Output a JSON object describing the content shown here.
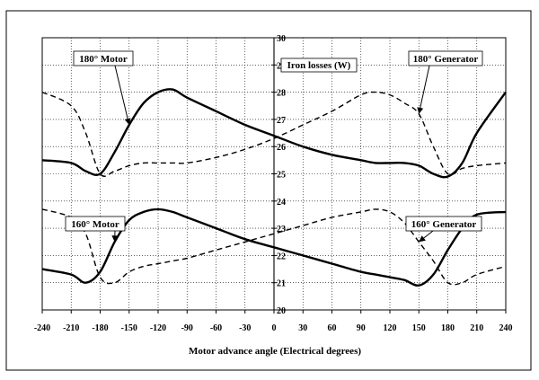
{
  "chart_data": {
    "type": "line",
    "title": "",
    "xlabel": "Motor advance angle (Electrical degrees)",
    "ylabel": "Iron losses (W)",
    "xlim": [
      -240,
      240
    ],
    "ylim": [
      20,
      30
    ],
    "xticks": [
      -240,
      -210,
      -180,
      -150,
      -120,
      -90,
      -60,
      -30,
      0,
      30,
      60,
      90,
      120,
      150,
      180,
      210,
      240
    ],
    "yticks": [
      20,
      21,
      22,
      23,
      24,
      25,
      26,
      27,
      28,
      29,
      30
    ],
    "grid": true,
    "x": [
      -240,
      -210,
      -195,
      -180,
      -165,
      -150,
      -135,
      -120,
      -105,
      -90,
      -60,
      -30,
      0,
      30,
      60,
      90,
      105,
      120,
      135,
      150,
      165,
      180,
      195,
      210,
      240
    ],
    "series": [
      {
        "name": "180° Motor",
        "style": "solid",
        "values": [
          25.5,
          25.4,
          25.1,
          25.0,
          25.8,
          26.8,
          27.6,
          28.0,
          28.1,
          27.8,
          27.3,
          26.8,
          26.4,
          26.0,
          25.7,
          25.5,
          25.4,
          25.4,
          25.4,
          25.3,
          25.0,
          24.9,
          25.4,
          26.5,
          28.0
        ]
      },
      {
        "name": "180° Generator",
        "style": "dashed",
        "values": [
          28.0,
          27.5,
          26.5,
          25.0,
          25.1,
          25.3,
          25.4,
          25.4,
          25.4,
          25.4,
          25.6,
          25.9,
          26.3,
          26.8,
          27.3,
          27.9,
          28.0,
          27.9,
          27.6,
          27.2,
          26.0,
          25.0,
          25.2,
          25.3,
          25.4
        ]
      },
      {
        "name": "160° Motor",
        "style": "solid",
        "values": [
          21.5,
          21.3,
          21.0,
          21.4,
          22.5,
          23.3,
          23.6,
          23.7,
          23.6,
          23.4,
          23.0,
          22.6,
          22.3,
          22.0,
          21.7,
          21.4,
          21.3,
          21.2,
          21.1,
          20.9,
          21.3,
          22.2,
          23.0,
          23.5,
          23.6
        ]
      },
      {
        "name": "160° Generator",
        "style": "dashed",
        "values": [
          23.7,
          23.4,
          22.8,
          21.2,
          21.0,
          21.4,
          21.6,
          21.7,
          21.8,
          21.9,
          22.2,
          22.5,
          22.8,
          23.1,
          23.4,
          23.6,
          23.7,
          23.6,
          23.2,
          22.5,
          21.8,
          21.0,
          21.0,
          21.3,
          21.6
        ]
      }
    ],
    "annotations": [
      {
        "text": "180° Motor",
        "target_series": 0
      },
      {
        "text": "180° Generator",
        "target_series": 1
      },
      {
        "text": "160° Motor",
        "target_series": 2
      },
      {
        "text": "160° Generator",
        "target_series": 3
      }
    ]
  }
}
